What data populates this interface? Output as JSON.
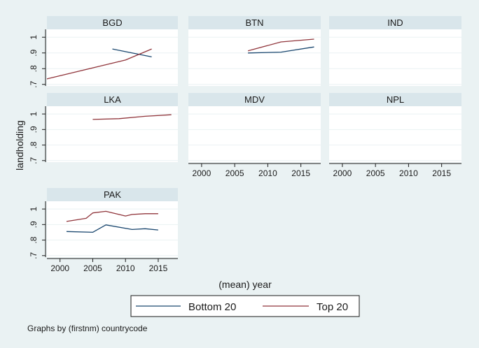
{
  "chart_data": {
    "type": "line",
    "ylabel": "landholding",
    "xlabel": "(mean) year",
    "note": "Graphs by (firstnm) countrycode",
    "xlim": [
      1998,
      2018
    ],
    "ylim": [
      0.69,
      1.05
    ],
    "xticks": [
      2000,
      2005,
      2010,
      2015
    ],
    "yticks": [
      0.7,
      0.8,
      0.9,
      1
    ],
    "ytick_labels": [
      ".7",
      ".8",
      ".9",
      "1"
    ],
    "legend": {
      "placement": "bottom",
      "entries": [
        {
          "name": "Bottom 20",
          "color": "#1a476f"
        },
        {
          "name": "Top 20",
          "color": "#90353b"
        }
      ]
    },
    "panels": [
      {
        "title": "BGD",
        "series": [
          {
            "name": "Bottom 20",
            "x": [
              2008,
              2014
            ],
            "y": [
              0.925,
              0.875
            ]
          },
          {
            "name": "Top 20",
            "x": [
              1998,
              2002,
              2006,
              2010,
              2014
            ],
            "y": [
              0.735,
              0.775,
              0.815,
              0.855,
              0.925
            ]
          }
        ]
      },
      {
        "title": "BTN",
        "series": [
          {
            "name": "Bottom 20",
            "x": [
              2007,
              2012,
              2017
            ],
            "y": [
              0.9,
              0.905,
              0.938
            ]
          },
          {
            "name": "Top 20",
            "x": [
              2007,
              2012,
              2017
            ],
            "y": [
              0.913,
              0.97,
              0.988
            ]
          }
        ]
      },
      {
        "title": "IND",
        "series": []
      },
      {
        "title": "LKA",
        "series": [
          {
            "name": "Top 20",
            "x": [
              2005,
              2009,
              2013,
              2017
            ],
            "y": [
              0.965,
              0.97,
              0.985,
              0.995
            ]
          }
        ]
      },
      {
        "title": "MDV",
        "series": []
      },
      {
        "title": "NPL",
        "series": []
      },
      {
        "title": "PAK",
        "series": [
          {
            "name": "Bottom 20",
            "x": [
              2001,
              2005,
              2007,
              2011,
              2013,
              2015
            ],
            "y": [
              0.855,
              0.85,
              0.898,
              0.868,
              0.873,
              0.865
            ]
          },
          {
            "name": "Top 20",
            "x": [
              2001,
              2004,
              2005,
              2007,
              2010,
              2011,
              2013,
              2015
            ],
            "y": [
              0.92,
              0.94,
              0.975,
              0.985,
              0.955,
              0.965,
              0.97,
              0.97
            ]
          }
        ]
      }
    ]
  }
}
